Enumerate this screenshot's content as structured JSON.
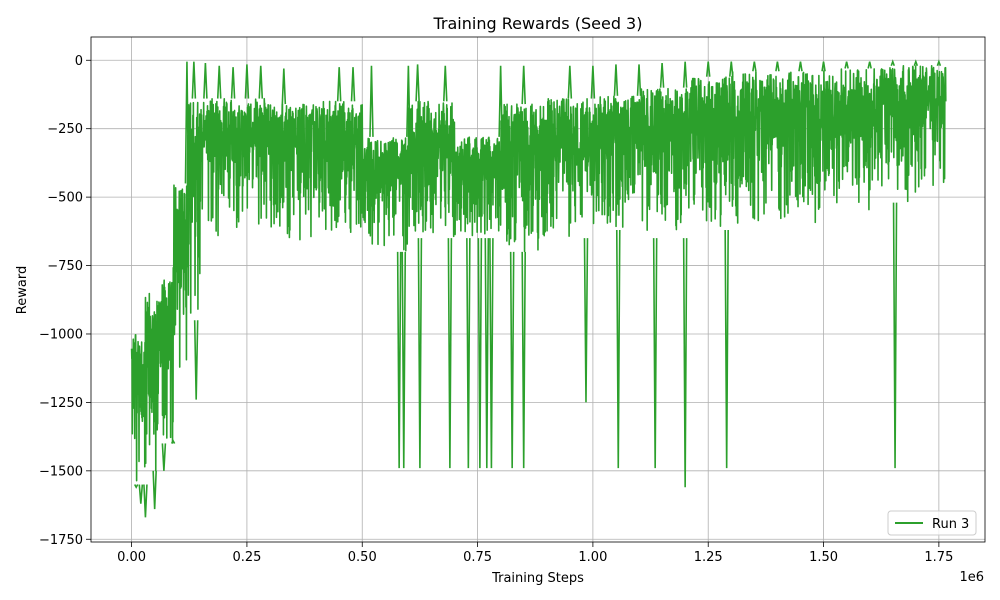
{
  "chart_data": {
    "type": "line",
    "title": "Training Rewards (Seed 3)",
    "xlabel": "Training Steps",
    "ylabel": "Reward",
    "x_offset_label": "1e6",
    "xlim": [
      -0.088,
      1.85
    ],
    "ylim": [
      -1760,
      85
    ],
    "x_ticks": [
      0.0,
      0.25,
      0.5,
      0.75,
      1.0,
      1.25,
      1.5,
      1.75
    ],
    "x_tick_labels": [
      "0.00",
      "0.25",
      "0.50",
      "0.75",
      "1.00",
      "1.25",
      "1.50",
      "1.75"
    ],
    "y_ticks": [
      0,
      -250,
      -500,
      -750,
      -1000,
      -1250,
      -1500,
      -1750
    ],
    "y_tick_labels": [
      "0",
      "−250",
      "−500",
      "−750",
      "−1000",
      "−1250",
      "−1500",
      "−1750"
    ],
    "grid": true,
    "legend": {
      "position": "bottom-right"
    },
    "series": [
      {
        "name": "Run 3",
        "color": "#2ca02c",
        "segments": [
          {
            "x_start": 0.0,
            "x_end": 0.03,
            "upper": -1000,
            "lower": -1550
          },
          {
            "x_start": 0.03,
            "x_end": 0.06,
            "upper": -850,
            "lower": -1500
          },
          {
            "x_start": 0.06,
            "x_end": 0.09,
            "upper": -800,
            "lower": -1400
          },
          {
            "x_start": 0.09,
            "x_end": 0.12,
            "upper": -450,
            "lower": -1200
          },
          {
            "x_start": 0.12,
            "x_end": 0.15,
            "upper": -140,
            "lower": -950
          },
          {
            "x_start": 0.15,
            "x_end": 0.2,
            "upper": -140,
            "lower": -650
          },
          {
            "x_start": 0.2,
            "x_end": 0.3,
            "upper": -140,
            "lower": -620
          },
          {
            "x_start": 0.3,
            "x_end": 0.4,
            "upper": -160,
            "lower": -660
          },
          {
            "x_start": 0.4,
            "x_end": 0.5,
            "upper": -150,
            "lower": -630
          },
          {
            "x_start": 0.5,
            "x_end": 0.6,
            "upper": -280,
            "lower": -700
          },
          {
            "x_start": 0.6,
            "x_end": 0.7,
            "upper": -150,
            "lower": -650
          },
          {
            "x_start": 0.7,
            "x_end": 0.8,
            "upper": -280,
            "lower": -650
          },
          {
            "x_start": 0.8,
            "x_end": 0.9,
            "upper": -160,
            "lower": -700
          },
          {
            "x_start": 0.9,
            "x_end": 1.0,
            "upper": -140,
            "lower": -650
          },
          {
            "x_start": 1.0,
            "x_end": 1.1,
            "upper": -130,
            "lower": -620
          },
          {
            "x_start": 1.1,
            "x_end": 1.2,
            "upper": -100,
            "lower": -650
          },
          {
            "x_start": 1.2,
            "x_end": 1.3,
            "upper": -60,
            "lower": -620
          },
          {
            "x_start": 1.3,
            "x_end": 1.4,
            "upper": -40,
            "lower": -600
          },
          {
            "x_start": 1.4,
            "x_end": 1.5,
            "upper": -40,
            "lower": -600
          },
          {
            "x_start": 1.5,
            "x_end": 1.6,
            "upper": -30,
            "lower": -550
          },
          {
            "x_start": 1.6,
            "x_end": 1.7,
            "upper": -20,
            "lower": -520
          },
          {
            "x_start": 1.7,
            "x_end": 1.765,
            "upper": -20,
            "lower": -500
          }
        ],
        "peaks": [
          [
            0.12,
            -5
          ],
          [
            0.135,
            -5
          ],
          [
            0.16,
            -10
          ],
          [
            0.19,
            -20
          ],
          [
            0.22,
            -25
          ],
          [
            0.25,
            -15
          ],
          [
            0.28,
            -20
          ],
          [
            0.33,
            -30
          ],
          [
            0.45,
            -25
          ],
          [
            0.48,
            -25
          ],
          [
            0.52,
            -20
          ],
          [
            0.6,
            -20
          ],
          [
            0.62,
            -15
          ],
          [
            0.68,
            -20
          ],
          [
            0.8,
            -20
          ],
          [
            0.85,
            -20
          ],
          [
            0.95,
            -20
          ],
          [
            1.0,
            -20
          ],
          [
            1.05,
            -15
          ],
          [
            1.1,
            -15
          ],
          [
            1.15,
            -10
          ],
          [
            1.2,
            -5
          ],
          [
            1.25,
            -5
          ],
          [
            1.3,
            -5
          ],
          [
            1.35,
            -5
          ],
          [
            1.4,
            -5
          ],
          [
            1.45,
            -5
          ],
          [
            1.5,
            -5
          ],
          [
            1.55,
            -5
          ],
          [
            1.6,
            -5
          ],
          [
            1.65,
            -5
          ],
          [
            1.7,
            -5
          ],
          [
            1.75,
            -5
          ]
        ],
        "dips": [
          [
            0.01,
            -1560
          ],
          [
            0.02,
            -1620
          ],
          [
            0.03,
            -1670
          ],
          [
            0.05,
            -1640
          ],
          [
            0.07,
            -1500
          ],
          [
            0.09,
            -1390
          ],
          [
            0.14,
            -1240
          ],
          [
            0.58,
            -1490
          ],
          [
            0.59,
            -1490
          ],
          [
            0.625,
            -1490
          ],
          [
            0.69,
            -1490
          ],
          [
            0.73,
            -1490
          ],
          [
            0.755,
            -1490
          ],
          [
            0.77,
            -1490
          ],
          [
            0.78,
            -1490
          ],
          [
            0.825,
            -1490
          ],
          [
            0.85,
            -1490
          ],
          [
            0.985,
            -1250
          ],
          [
            1.055,
            -1490
          ],
          [
            1.135,
            -1490
          ],
          [
            1.2,
            -1560
          ],
          [
            1.29,
            -1490
          ],
          [
            1.655,
            -1490
          ]
        ]
      }
    ]
  }
}
